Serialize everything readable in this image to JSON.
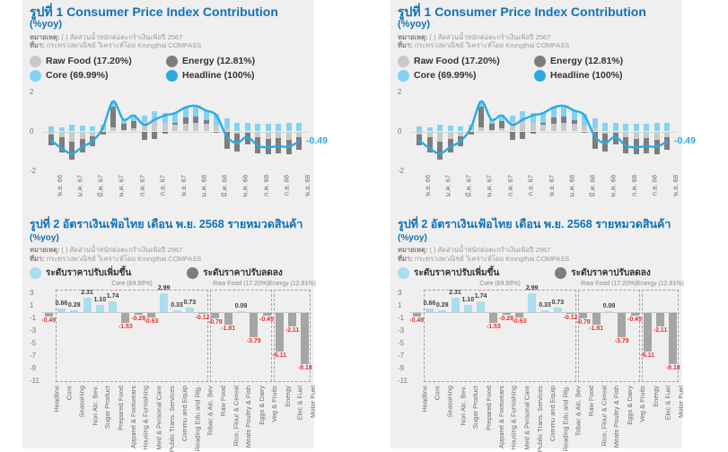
{
  "colors": {
    "panel_bg": "#efefef",
    "title_blue": "#1272b5",
    "headline_blue": "#29abe2",
    "core_blue": "#82d3f2",
    "raw_food_gray": "#c9c9c9",
    "energy_gray": "#7d7d7d",
    "chart2_positive": "#a9ddf2",
    "chart2_negative": "#a5a5a5",
    "negative_label_red": "#e8312a"
  },
  "fig1": {
    "title": "รูปที่ 1 Consumer Price Index Contribution",
    "subtitle": "(%yoy)",
    "note_label": "หมายเหตุ:",
    "note": "( ) สัดส่วนน้ำหนักต่อตะกร้าเงินเฟ้อปี 2567",
    "source_label": "ที่มา:",
    "source": "กระทรวงพาณิชย์ วิเคราะห์โดย Krungthai COMPASS",
    "legend": [
      {
        "label": "Raw Food (17.20%)",
        "color": "#c9c9c9"
      },
      {
        "label": "Energy (12.81%)",
        "color": "#7d7d7d"
      },
      {
        "label": "Core (69.99%)",
        "color": "#82d3f2"
      },
      {
        "label": "Headline (100%)",
        "color": "#29abe2"
      }
    ]
  },
  "fig2": {
    "title": "รูปที่ 2 อัตราเงินเฟ้อไทย เดือน พ.ย. 2568 รายหมวดสินค้า",
    "title_suffix": "(%yoy)",
    "note_label": "หมายเหตุ:",
    "note": "( ) สัดส่วนน้ำหนักต่อตะกร้าเงินเฟ้อปี 2567",
    "source_label": "ที่มา:",
    "source": "กระทรวงพาณิชย์ วิเคราะห์โดย Krungthai COMPASS",
    "legend_increase": "ระดับราคาปรับเพิ่มขึ้น",
    "legend_decrease": "ระดับราคาปรับลดลง"
  },
  "chart_data": [
    {
      "type": "bar",
      "subtype": "stacked-bars-with-line",
      "title": "รูปที่ 1 Consumer Price Index Contribution (%yoy)",
      "ylim": [
        -2,
        2
      ],
      "yticks": [
        2,
        0,
        -2
      ],
      "legend_position": "top",
      "categories": [
        "พ.ย. 66",
        "ธ.ค. 66",
        "ม.ค. 67",
        "ก.พ. 67",
        "มี.ค. 67",
        "เม.ย. 67",
        "พ.ค. 67",
        "มิ.ย. 67",
        "ก.ค. 67",
        "ส.ค. 67",
        "ก.ย. 67",
        "ต.ค. 67",
        "พ.ย. 67",
        "ธ.ค. 67",
        "ม.ค. 68",
        "ก.พ. 68",
        "มี.ค. 68",
        "เม.ย. 68",
        "พ.ค. 68",
        "มิ.ย. 68",
        "ก.ค. 68",
        "ส.ค. 68",
        "ก.ย. 68",
        "ต.ค. 68",
        "พ.ย. 68"
      ],
      "shown_tick_labels": [
        "พ.ย. 66",
        "ม.ค. 67",
        "มี.ค. 67",
        "พ.ค. 67",
        "ก.ค. 67",
        "ก.ย. 67",
        "พ.ย. 67",
        "ม.ค. 68",
        "มี.ค. 68",
        "พ.ค. 68",
        "ก.ค. 68",
        "ก.ย. 68",
        "พ.ย. 68"
      ],
      "series": [
        {
          "name": "Raw Food (17.20%)",
          "color": "#c9c9c9",
          "values": [
            -0.14,
            -0.3,
            -0.5,
            -0.4,
            -0.23,
            0.05,
            0.2,
            0.05,
            0.18,
            0.48,
            0.55,
            0.45,
            0.35,
            0.4,
            0.42,
            0.38,
            0.3,
            0.18,
            -0.12,
            -0.07,
            -0.3,
            -0.37,
            -0.35,
            -0.43,
            -0.29
          ]
        },
        {
          "name": "Energy (12.81%)",
          "color": "#7d7d7d",
          "values": [
            -0.55,
            -0.75,
            -0.95,
            -0.67,
            -0.5,
            -0.14,
            1.05,
            0.32,
            0.33,
            -0.45,
            -0.4,
            -0.1,
            0.1,
            0.31,
            0.35,
            0.18,
            -0.06,
            -0.9,
            -0.9,
            -0.6,
            -0.8,
            -0.8,
            -0.77,
            -0.75,
            -0.65
          ]
        },
        {
          "name": "Core (69.99%)",
          "color": "#82d3f2",
          "values": [
            0.25,
            0.22,
            0.34,
            0.3,
            0.26,
            0.28,
            0.29,
            0.25,
            0.32,
            0.32,
            0.46,
            0.48,
            0.5,
            0.52,
            0.55,
            0.52,
            0.6,
            0.5,
            0.45,
            0.42,
            0.4,
            0.38,
            0.4,
            0.42,
            0.45
          ]
        }
      ],
      "line": {
        "name": "Headline (100%)",
        "color": "#29abe2",
        "values": [
          -0.44,
          -0.83,
          -1.11,
          -0.77,
          -0.47,
          0.19,
          1.54,
          0.62,
          0.83,
          0.35,
          0.61,
          0.83,
          0.95,
          1.23,
          1.32,
          1.08,
          0.84,
          -0.22,
          -0.57,
          -0.25,
          -0.7,
          -0.79,
          -0.72,
          -0.76,
          -0.49
        ],
        "end_label": "-0.49"
      }
    },
    {
      "type": "bar",
      "title": "รูปที่ 2 อัตราเงินเฟ้อไทย เดือน พ.ย. 2568 รายหมวดสินค้า (%yoy)",
      "ylim": [
        -11.5,
        3.6
      ],
      "yticks": [
        3,
        1,
        -1,
        -3,
        -5,
        -7,
        -9,
        -11
      ],
      "categories": [
        "Headline",
        "Core",
        "Seasoning",
        "Non Alc. Bev.",
        "Sugar Product",
        "Prepared Food",
        "Apparel & Footwears",
        "Housing & Furnishing",
        "Med & Personal Care",
        "Public Trans. Services",
        "Commu and Equip",
        "Reading Edu and Rlg.",
        "Tobac & Alc. Bev",
        "Raw Food",
        "Rice, Flour & Cereal",
        "Meats Poultry & Fish",
        "Eggs & Dairy",
        "Veg & Fruits",
        "Energy",
        "Elec & Fuel",
        "Motor Fuel"
      ],
      "values": [
        -0.49,
        0.66,
        0.29,
        2.31,
        1.1,
        1.74,
        -1.53,
        -0.28,
        -0.63,
        2.99,
        0.33,
        0.73,
        -0.12,
        -0.78,
        -1.81,
        0.09,
        -3.79,
        -0.45,
        -6.11,
        -2.11,
        -8.18
      ],
      "groups": [
        {
          "label": "Core  (69.99%)",
          "start": 1,
          "end": 12
        },
        {
          "label": "Raw Food (17.20%)",
          "start": 13,
          "end": 17
        },
        {
          "label": "Energy (12.81%)",
          "start": 18,
          "end": 20
        }
      ],
      "positive_color": "#a9ddf2",
      "negative_color": "#a5a5a5",
      "value_label_negative_color": "#e8312a"
    }
  ]
}
